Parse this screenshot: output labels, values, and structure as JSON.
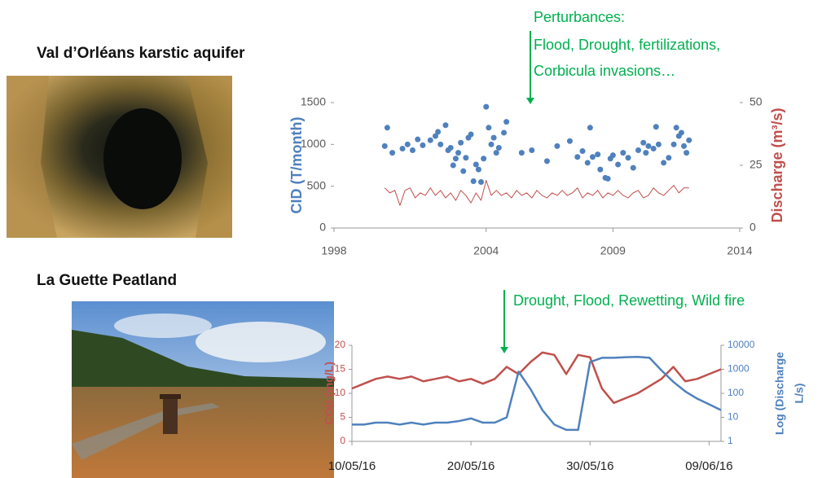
{
  "chart_data": [
    {
      "type": "combo",
      "title": "Val d’Orléans karstic aquifer",
      "annotations": [
        "Perturbances:",
        "Flood, Drought, fertilizations,",
        "Corbicula invasions…"
      ],
      "ylabel": "CID (T/month)",
      "y2label": [
        "Discharge (m³/s)"
      ],
      "xlim": [
        1998,
        2014
      ],
      "xticks": [
        1998,
        2004,
        2009,
        2014
      ],
      "ylim": [
        0,
        1500
      ],
      "yticks": [
        0,
        500,
        1000,
        1500
      ],
      "y2lim": [
        0,
        50
      ],
      "y2ticks": [
        0,
        25,
        50
      ],
      "y2log": false,
      "grid": false,
      "series": [
        {
          "type": "scatter",
          "color": "#4f81bd",
          "x": [
            2000.0,
            2000.1,
            2000.3,
            2000.7,
            2000.9,
            2001.1,
            2001.3,
            2001.5,
            2001.8,
            2002.0,
            2002.1,
            2002.2,
            2002.4,
            2002.5,
            2002.6,
            2002.7,
            2002.8,
            2002.9,
            2003.0,
            2003.1,
            2003.2,
            2003.3,
            2003.4,
            2003.5,
            2003.6,
            2003.7,
            2003.8,
            2003.9,
            2004.0,
            2004.1,
            2004.2,
            2004.3,
            2004.4,
            2004.5,
            2004.7,
            2004.8,
            2005.4,
            2005.8,
            2006.4,
            2006.8,
            2007.3,
            2007.6,
            2007.8,
            2008.0,
            2008.1,
            2008.2,
            2008.4,
            2008.5,
            2008.7,
            2008.8,
            2008.9,
            2009.0,
            2009.2,
            2009.4,
            2009.6,
            2009.8,
            2010.0,
            2010.2,
            2010.3,
            2010.4,
            2010.6,
            2010.7,
            2010.8,
            2011.0,
            2011.2,
            2011.4,
            2011.5,
            2011.6,
            2011.7,
            2011.8,
            2011.9,
            2012.0
          ],
          "values": [
            980,
            1200,
            900,
            950,
            1000,
            930,
            1060,
            990,
            1050,
            1100,
            1150,
            1000,
            1230,
            930,
            960,
            750,
            830,
            900,
            1020,
            680,
            840,
            1080,
            1120,
            560,
            760,
            700,
            550,
            830,
            1450,
            1200,
            1000,
            1080,
            900,
            960,
            1140,
            1270,
            900,
            930,
            800,
            980,
            1040,
            850,
            920,
            780,
            1200,
            850,
            880,
            700,
            600,
            590,
            830,
            870,
            760,
            900,
            840,
            720,
            930,
            1020,
            900,
            980,
            950,
            1210,
            1000,
            780,
            840,
            1000,
            1200,
            1100,
            1140,
            980,
            900,
            1050
          ]
        },
        {
          "type": "line",
          "color": "#c0504d",
          "axis": "y2",
          "x": [
            2000.0,
            2000.2,
            2000.4,
            2000.6,
            2000.8,
            2001.0,
            2001.2,
            2001.4,
            2001.6,
            2001.8,
            2002.0,
            2002.2,
            2002.4,
            2002.6,
            2002.8,
            2003.0,
            2003.2,
            2003.4,
            2003.6,
            2003.8,
            2004.0,
            2004.2,
            2004.4,
            2004.6,
            2004.8,
            2005.0,
            2005.2,
            2005.4,
            2005.6,
            2005.8,
            2006.0,
            2006.2,
            2006.4,
            2006.6,
            2006.8,
            2007.0,
            2007.2,
            2007.4,
            2007.6,
            2007.8,
            2008.0,
            2008.2,
            2008.4,
            2008.6,
            2008.8,
            2009.0,
            2009.2,
            2009.4,
            2009.6,
            2009.8,
            2010.0,
            2010.2,
            2010.4,
            2010.6,
            2010.8,
            2011.0,
            2011.2,
            2011.4,
            2011.6,
            2011.8,
            2012.0
          ],
          "values": [
            16,
            14,
            15,
            9,
            15,
            16,
            12,
            14,
            13,
            16,
            13,
            15,
            12,
            14,
            11,
            15,
            13,
            10,
            14,
            11,
            19,
            13,
            15,
            13,
            14,
            12,
            15,
            13,
            14,
            12,
            15,
            13,
            12,
            14,
            13,
            15,
            13,
            14,
            16,
            12,
            14,
            13,
            15,
            12,
            14,
            13,
            15,
            13,
            12,
            14,
            15,
            12,
            13,
            16,
            14,
            13,
            15,
            17,
            14,
            16,
            16
          ]
        }
      ]
    },
    {
      "type": "combo",
      "title": "La Guette Peatland",
      "annotations": [
        "Drought, Flood, Rewetting, Wild fire"
      ],
      "ylabel": "COD (mg/L)",
      "y2label": [
        "Log (Discharge",
        "L/s)"
      ],
      "xlim": [
        "2016-05-10",
        "2016-06-10"
      ],
      "xticks": [
        {
          "value": "2016-05-10",
          "label": "10/05/16"
        },
        {
          "value": "2016-05-20",
          "label": "20/05/16"
        },
        {
          "value": "2016-05-30",
          "label": "30/05/16"
        },
        {
          "value": "2016-06-09",
          "label": "09/06/16"
        }
      ],
      "ylim": [
        0,
        20
      ],
      "yticks": [
        0,
        5,
        10,
        15,
        20
      ],
      "y2lim": [
        1,
        10000
      ],
      "y2ticks": [
        1,
        10,
        100,
        1000,
        10000
      ],
      "y2log": true,
      "grid": false,
      "series": [
        {
          "type": "line",
          "color": "#c0504d",
          "x": [
            "2016-05-10",
            "2016-05-11",
            "2016-05-12",
            "2016-05-13",
            "2016-05-14",
            "2016-05-15",
            "2016-05-16",
            "2016-05-17",
            "2016-05-18",
            "2016-05-19",
            "2016-05-20",
            "2016-05-21",
            "2016-05-22",
            "2016-05-23",
            "2016-05-24",
            "2016-05-25",
            "2016-05-26",
            "2016-05-27",
            "2016-05-28",
            "2016-05-29",
            "2016-05-30",
            "2016-05-31",
            "2016-06-01",
            "2016-06-02",
            "2016-06-03",
            "2016-06-04",
            "2016-06-05",
            "2016-06-06",
            "2016-06-07",
            "2016-06-08",
            "2016-06-09",
            "2016-06-10"
          ],
          "values": [
            11,
            12,
            13,
            13.5,
            13,
            13.5,
            12.5,
            13,
            13.5,
            12.5,
            13,
            12,
            13,
            15.5,
            14,
            16.5,
            18.5,
            18,
            14,
            18,
            17.5,
            11,
            8,
            9,
            10,
            11.5,
            13,
            15.5,
            12.5,
            13,
            14,
            15
          ]
        },
        {
          "type": "line",
          "color": "#4f81bd",
          "axis": "y2",
          "x": [
            "2016-05-10",
            "2016-05-11",
            "2016-05-12",
            "2016-05-13",
            "2016-05-14",
            "2016-05-15",
            "2016-05-16",
            "2016-05-17",
            "2016-05-18",
            "2016-05-19",
            "2016-05-20",
            "2016-05-21",
            "2016-05-22",
            "2016-05-23",
            "2016-05-24",
            "2016-05-25",
            "2016-05-26",
            "2016-05-27",
            "2016-05-28",
            "2016-05-29",
            "2016-05-30",
            "2016-05-31",
            "2016-06-01",
            "2016-06-02",
            "2016-06-03",
            "2016-06-04",
            "2016-06-05",
            "2016-06-06",
            "2016-06-07",
            "2016-06-08",
            "2016-06-09",
            "2016-06-10"
          ],
          "values": [
            5,
            5,
            6,
            6,
            5,
            6,
            5,
            6,
            6,
            7,
            9,
            6,
            6,
            10,
            800,
            150,
            20,
            5,
            3,
            3,
            2000,
            3000,
            3000,
            3200,
            3300,
            3000,
            900,
            300,
            120,
            60,
            35,
            20
          ]
        }
      ]
    }
  ]
}
